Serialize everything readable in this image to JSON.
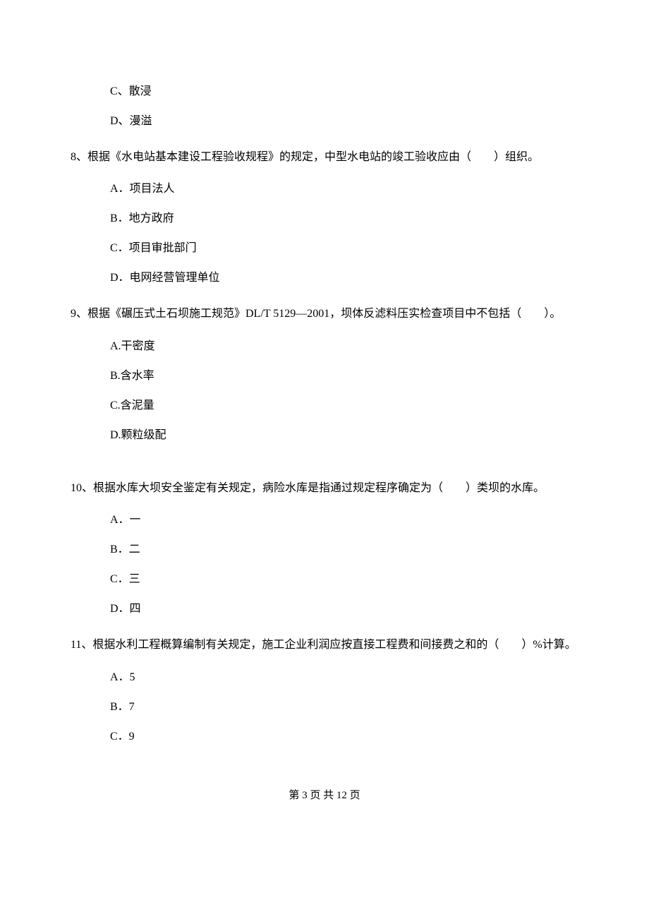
{
  "q7": {
    "options": {
      "C": "C、散浸",
      "D": "D、漫溢"
    }
  },
  "q8": {
    "text": "8、根据《水电站基本建设工程验收规程》的规定，中型水电站的竣工验收应由（　　）组织。",
    "options": {
      "A": "A．项目法人",
      "B": "B．地方政府",
      "C": "C．项目审批部门",
      "D": "D．电网经营管理单位"
    }
  },
  "q9": {
    "text": "9、根据《碾压式土石坝施工规范》DL/T 5129—2001，坝体反滤料压实检查项目中不包括（　　）。",
    "options": {
      "A": "A.干密度",
      "B": "B.含水率",
      "C": "C.含泥量",
      "D": "D.颗粒级配"
    }
  },
  "q10": {
    "text": "10、根据水库大坝安全鉴定有关规定，病险水库是指通过规定程序确定为（　　）类坝的水库。",
    "options": {
      "A": "A．一",
      "B": "B．二",
      "C": "C．三",
      "D": "D．四"
    }
  },
  "q11": {
    "text": "11、根据水利工程概算编制有关规定，施工企业利润应按直接工程费和间接费之和的（　　）%计算。",
    "options": {
      "A": "A．5",
      "B": "B．7",
      "C": "C．9"
    }
  },
  "footer": {
    "text": "第 3 页 共 12 页"
  }
}
